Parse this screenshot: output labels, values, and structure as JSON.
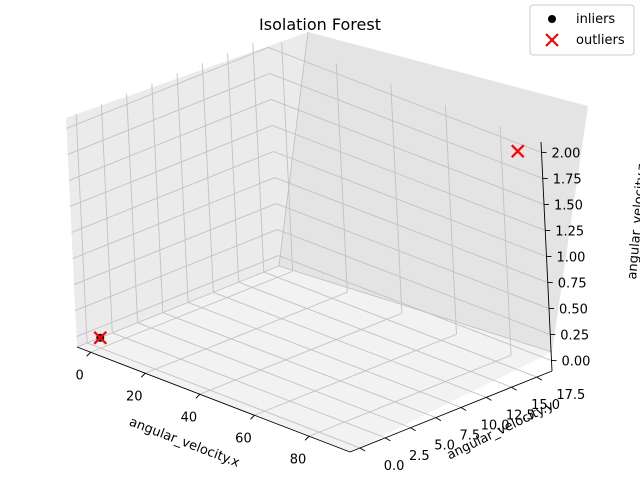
{
  "chart_data": {
    "type": "scatter",
    "projection": "3d",
    "title": "Isolation Forest",
    "xlabel": "angular_velocity.x",
    "ylabel": "angular_velocity.y",
    "zlabel": "angular_velocity.z",
    "xlim": [
      -5,
      95
    ],
    "ylim": [
      -1,
      19
    ],
    "zlim": [
      -0.1,
      2.1
    ],
    "x_ticks": [
      "0",
      "20",
      "40",
      "60",
      "80"
    ],
    "y_ticks": [
      "0.0",
      "2.5",
      "5.0",
      "7.5",
      "10.0",
      "12.5",
      "15.0",
      "17.5"
    ],
    "z_ticks": [
      "0.00",
      "0.25",
      "0.50",
      "0.75",
      "1.00",
      "1.25",
      "1.50",
      "1.75",
      "2.00"
    ],
    "grid": true,
    "legend_position": "top-right",
    "series": [
      {
        "name": "inliers",
        "marker": "circle",
        "color": "#000000",
        "points": [
          {
            "x": 0,
            "y": 0,
            "z": 0
          }
        ]
      },
      {
        "name": "outliers",
        "marker": "x",
        "color": "#ff0000",
        "points": [
          {
            "x": 0,
            "y": 0,
            "z": 0
          },
          {
            "x": 90,
            "y": 18,
            "z": 2
          }
        ]
      }
    ]
  }
}
